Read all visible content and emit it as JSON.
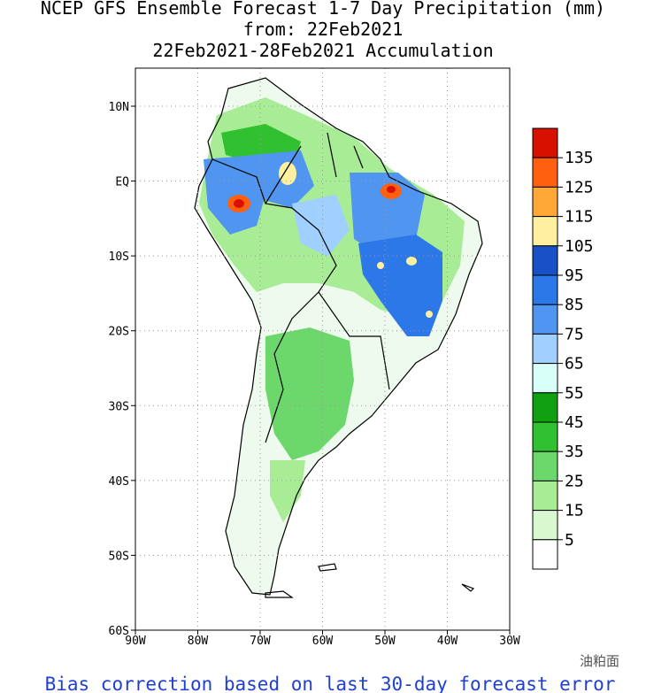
{
  "header": {
    "lines": [
      "NCEP GFS Ensemble Forecast 1-7 Day Precipitation (mm)",
      "from: 22Feb2021",
      "22Feb2021-28Feb2021 Accumulation"
    ]
  },
  "map": {
    "lat_labels": [
      "10N",
      "EQ",
      "10S",
      "20S",
      "30S",
      "40S",
      "50S",
      "60S"
    ],
    "lon_labels": [
      "90W",
      "80W",
      "70W",
      "60W",
      "50W",
      "40W",
      "30W"
    ]
  },
  "colorbar": {
    "levels": [
      135,
      125,
      115,
      105,
      95,
      85,
      75,
      65,
      55,
      45,
      35,
      25,
      15,
      5
    ],
    "colors": [
      "#d81000",
      "#ff6010",
      "#ffa838",
      "#fff0a0",
      "#1850c8",
      "#2c78e8",
      "#5096f0",
      "#a0d0ff",
      "#d8fff8",
      "#10a010",
      "#30c030",
      "#6cd86c",
      "#a8ec96",
      "#d8f8d0",
      "#ffffff"
    ]
  },
  "footer": "Bias correction based on last 30-day forecast error",
  "watermark": "油粕面"
}
